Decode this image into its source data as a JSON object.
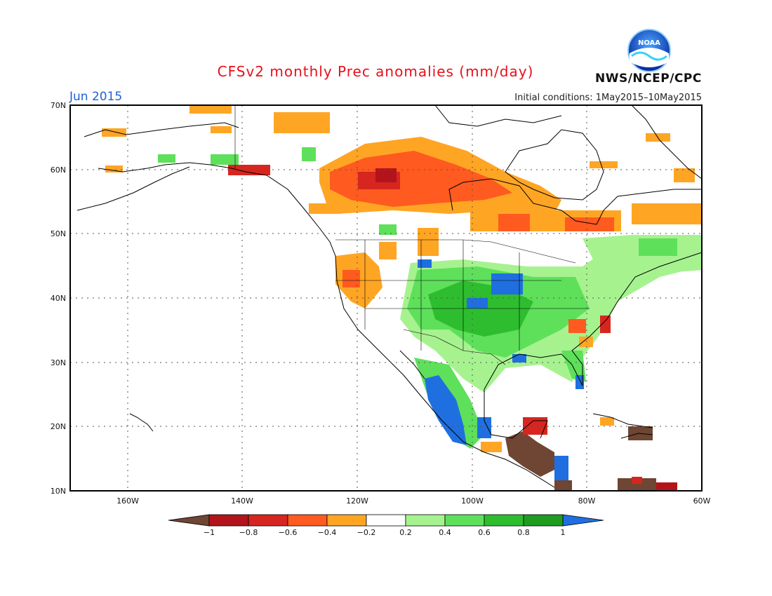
{
  "header": {
    "title": "CFSv2 monthly Prec anomalies (mm/day)",
    "valid_month": "Jun 2015",
    "initial_conditions": "Initial conditions: 1May2015–10May2015",
    "agency": "NWS/NCEP/CPC",
    "logo_text": "NOAA"
  },
  "map": {
    "lat_labels": [
      "70N",
      "60N",
      "50N",
      "40N",
      "30N",
      "20N",
      "10N"
    ],
    "lon_labels": [
      "160W",
      "140W",
      "120W",
      "100W",
      "80W",
      "60W"
    ],
    "extent": {
      "lon_min": -170,
      "lon_max": -60,
      "lat_min": 10,
      "lat_max": 70
    },
    "grid": "dotted, every 10 degrees"
  },
  "colorbar": {
    "labels": [
      "−1",
      "−0.8",
      "−0.6",
      "−0.4",
      "−0.2",
      "0.2",
      "0.4",
      "0.6",
      "0.8",
      "1"
    ],
    "colors": [
      "#6e4633",
      "#b3141b",
      "#d6261f",
      "#ff5a1f",
      "#ffa524",
      "#ffffff",
      "#a6f28f",
      "#5ee05a",
      "#2ebd2e",
      "#1f9b1f",
      "#1f6fe0"
    ]
  },
  "anomaly_regions": [
    {
      "name": "central-canada-dry",
      "color": "#ff5a1f"
    },
    {
      "name": "hudson-bay-south-dry",
      "color": "#ff5a1f"
    },
    {
      "name": "alaska-canada-dry-fringe",
      "color": "#ffa524"
    },
    {
      "name": "pacific-northwest-dry",
      "color": "#ffa524"
    },
    {
      "name": "great-plains-wet",
      "color": "#5ee05a"
    },
    {
      "name": "midwest-very-wet",
      "color": "#1f6fe0"
    },
    {
      "name": "northeast-wet",
      "color": "#a6f28f"
    },
    {
      "name": "mexico-west-very-wet",
      "color": "#1f6fe0"
    },
    {
      "name": "central-america-very-dry",
      "color": "#6e4633"
    },
    {
      "name": "caribbean-very-dry",
      "color": "#6e4633"
    }
  ]
}
